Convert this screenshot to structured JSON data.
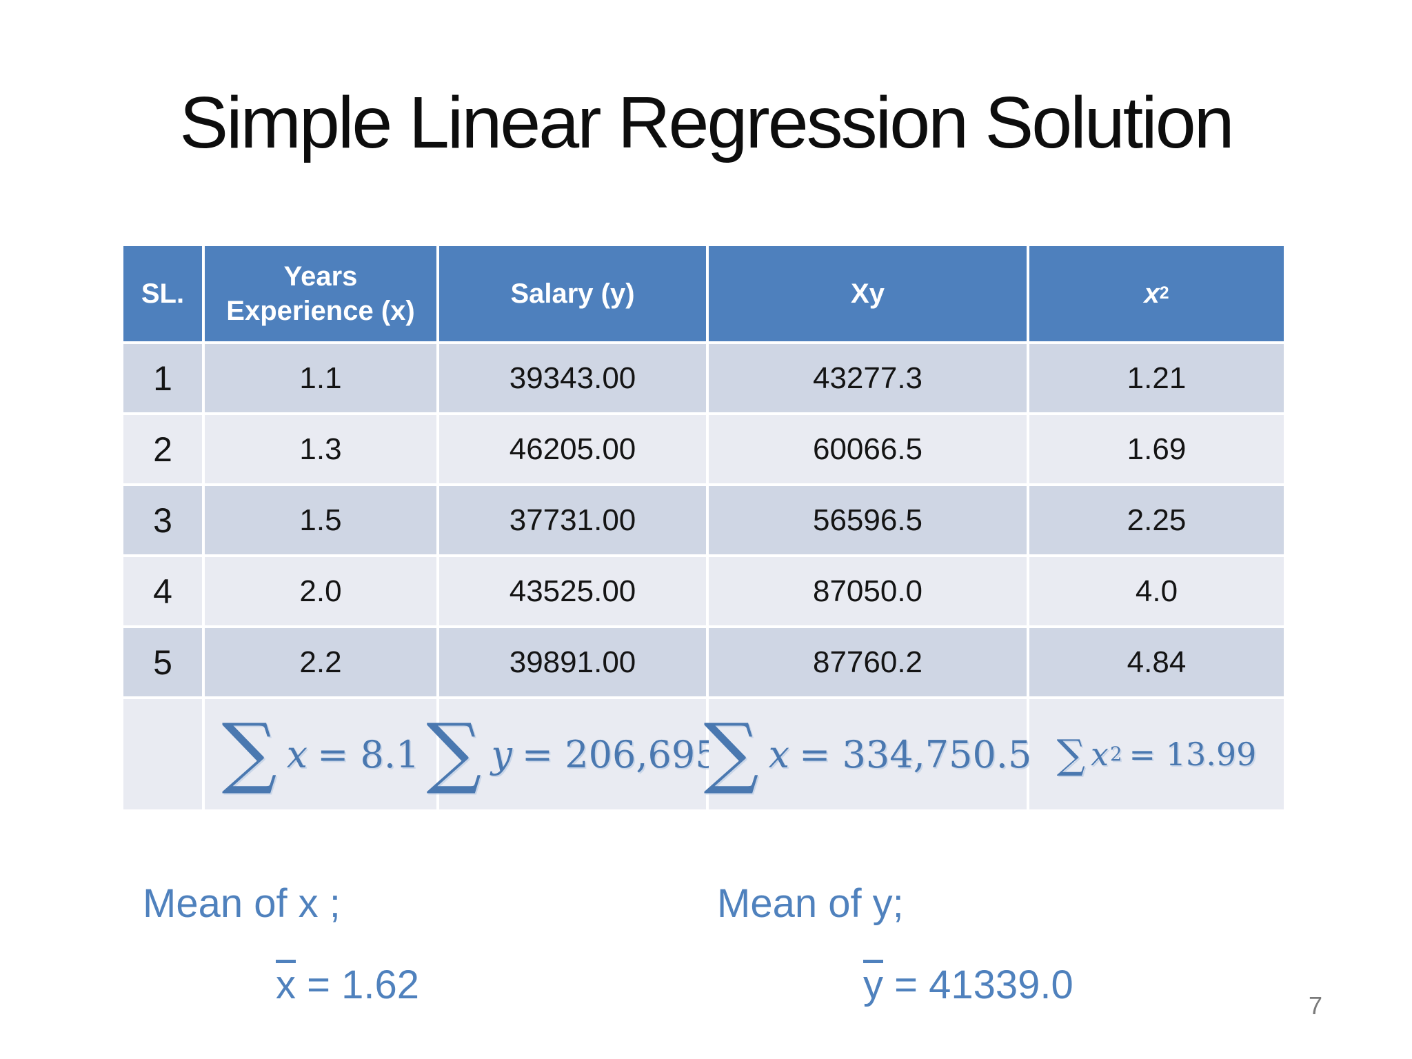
{
  "title": "Simple Linear Regression Solution",
  "page_number": "7",
  "colors": {
    "header_bg": "#4e80bd",
    "row_band_dark": "#cfd6e4",
    "row_band_light": "#e9ebf2",
    "sum_text": "#4a78b0",
    "mean_text": "#4f81bd",
    "title_text": "#0d0d0d",
    "page_number_text": "#7a7a7a"
  },
  "table": {
    "headers": {
      "sl": "SL.",
      "years": "Years Experience (x)",
      "salary": "Salary (y)",
      "xy": "Xy",
      "x_squared_base": "x",
      "x_squared_sup": "2"
    },
    "rows": [
      [
        "1",
        "1.1",
        "39343.00",
        "43277.3",
        "1.21"
      ],
      [
        "2",
        "1.3",
        "46205.00",
        "60066.5",
        "1.69"
      ],
      [
        "3",
        "1.5",
        "37731.00",
        "56596.5",
        "2.25"
      ],
      [
        "4",
        "2.0",
        "43525.00",
        "87050.0",
        "4.0"
      ],
      [
        "5",
        "2.2",
        "39891.00",
        "87760.2",
        "4.84"
      ]
    ],
    "sums": [
      {
        "sigma": "∑",
        "variable": "x",
        "value": "= 8.1"
      },
      {
        "sigma": "∑",
        "variable": "y",
        "value": "= 206,695"
      },
      {
        "sigma": "∑",
        "variable": "x",
        "value": "= 334,750.5"
      },
      {
        "sigma": "∑",
        "variable": "x",
        "sup": "2",
        "value": "= 13.99"
      }
    ]
  },
  "means": {
    "x_label": "Mean of x ;",
    "x_var": "x",
    "x_value": "= 1.62",
    "y_label": "Mean of y;",
    "y_var": "y",
    "y_value": "= 41339.0"
  }
}
